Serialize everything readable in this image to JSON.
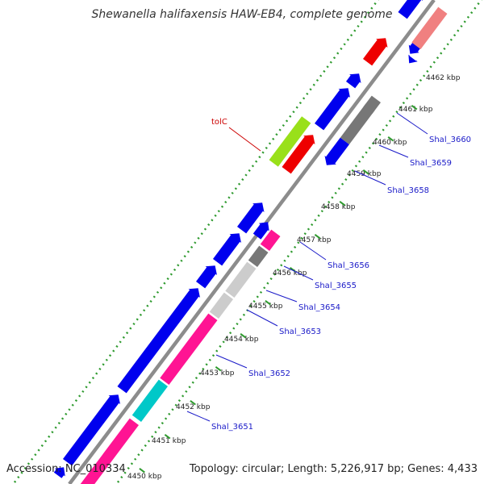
{
  "title": "Shewanella halifaxensis HAW-EB4, complete genome",
  "footer": {
    "accession": "Accession: NC_010334",
    "summary": "Topology: circular; Length: 5,226,917 bp; Genes: 4,433"
  },
  "colors": {
    "backbone": "#8c8c8c",
    "tick": "#2e9a2e",
    "forward_gene": "#0000ee",
    "reverse_gene": "#ff1493",
    "callout_red": "#ee0000",
    "callout_green": "#99e01a",
    "gray": "#777777",
    "light_gray": "#cccccc",
    "cyan": "#00c8c8",
    "salmon": "#f08080",
    "label_blue": "#1a1ac8"
  },
  "ticks": [
    "4450 kbp",
    "4451 kbp",
    "4452 kbp",
    "4453 kbp",
    "4454 kbp",
    "4455 kbp",
    "4456 kbp",
    "4457 kbp",
    "4458 kbp",
    "4459 kbp",
    "4460 kbp",
    "4461 kbp",
    "4462 kbp"
  ],
  "gene_labels": [
    "Shal_3651",
    "Shal_3652",
    "Shal_3653",
    "Shal_3654",
    "Shal_3655",
    "Shal_3656",
    "Shal_3658",
    "Shal_3659",
    "Shal_3660"
  ],
  "callout": "tolC"
}
